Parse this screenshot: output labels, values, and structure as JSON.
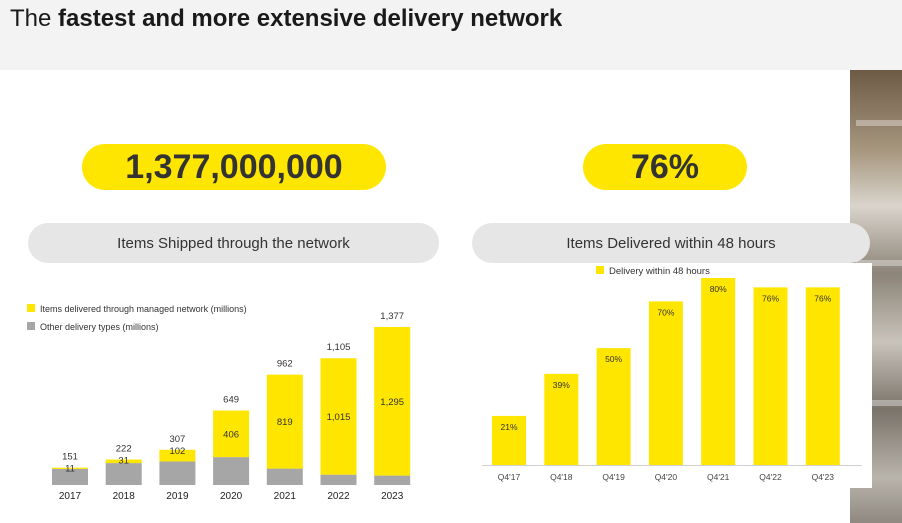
{
  "header": {
    "title_plain": "The ",
    "title_bold": "fastest and more extensive delivery network"
  },
  "kpi_left": {
    "value": "1,377,000,000",
    "label": "Items Shipped through the network"
  },
  "kpi_right": {
    "value": "76%",
    "label": "Items Delivered within 48 hours"
  },
  "colors": {
    "yellow": "#ffe600",
    "grey": "#a6a6a6",
    "pill_grey": "#e6e6e6"
  },
  "chart_data": [
    {
      "type": "bar",
      "stacked": true,
      "categories": [
        "2017",
        "2018",
        "2019",
        "2020",
        "2021",
        "2022",
        "2023"
      ],
      "series": [
        {
          "name": "Other delivery types (millions)",
          "color": "#a6a6a6",
          "values": [
            140,
            191,
            205,
            243,
            143,
            90,
            82
          ]
        },
        {
          "name": "Items delivered through managed network (millions)",
          "color": "#ffe600",
          "values": [
            11,
            31,
            102,
            406,
            819,
            1015,
            1295
          ]
        }
      ],
      "totals": [
        151,
        222,
        307,
        649,
        962,
        1105,
        1377
      ],
      "total_labels": [
        "151",
        "222",
        "307",
        "649",
        "962",
        "1,105",
        "1,377"
      ],
      "segment_labels": [
        "11",
        "31",
        "102",
        "406",
        "819",
        "1,015",
        "1,295"
      ],
      "legend_position": "top-left"
    },
    {
      "type": "bar",
      "categories": [
        "Q4'17",
        "Q4'18",
        "Q4'19",
        "Q4'20",
        "Q4'21",
        "Q4'22",
        "Q4'23"
      ],
      "series": [
        {
          "name": "Delivery within 48 hours",
          "color": "#ffe600",
          "values": [
            21,
            39,
            50,
            70,
            80,
            76,
            76
          ]
        }
      ],
      "value_labels": [
        "21%",
        "39%",
        "50%",
        "70%",
        "80%",
        "76%",
        "76%"
      ],
      "legend_position": "top"
    }
  ]
}
